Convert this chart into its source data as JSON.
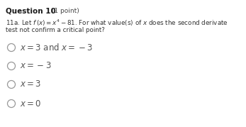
{
  "title_bold": "Question 10",
  "title_normal": " (1 point)",
  "q_label": "11a. Let ",
  "q_math": "$f\\,(x) = x^4 - 81$",
  "q_rest": ". For what value(s) of $x$ does the second derivate",
  "q_line2": "test not confirm a critical point?",
  "options": [
    "$x = 3$ and $x = -3$",
    "$x = -3$",
    "$x = 3$",
    "$x = 0$"
  ],
  "bg_color": "#ffffff",
  "title_bold_color": "#1a1a1a",
  "title_normal_color": "#444444",
  "question_color": "#333333",
  "option_color": "#555555",
  "circle_color": "#999999"
}
